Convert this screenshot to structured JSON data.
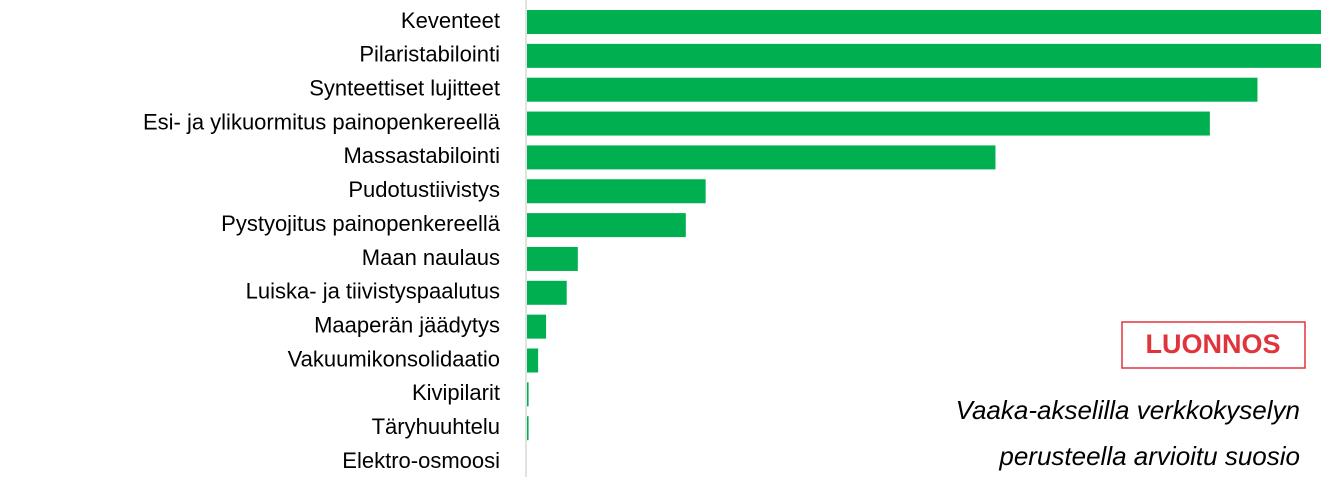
{
  "chart_data": {
    "type": "hbar",
    "categories": [
      "Keventeet",
      "Pilaristabilointi",
      "Synteettiset lujitteet",
      "Esi- ja ylikuormitus painopenkereellä",
      "Massastabilointi",
      "Pudotustiivistys",
      "Pystyojitus painopenkereellä",
      "Maan naulaus",
      "Luiska- ja tiivistyspaalutus",
      "Maaperän jäädytys",
      "Vakuumikonsolidaatio",
      "Kivipilarit",
      "Täryhuuhtelu",
      "Elektro-osmoosi"
    ],
    "values": [
      100,
      100,
      92,
      86,
      59,
      22.5,
      20,
      6.4,
      5,
      2.4,
      1.4,
      0.2,
      0.2,
      0
    ],
    "color": "#00b050",
    "xlim": [
      0,
      100
    ],
    "stamp": "LUONNOS",
    "note": [
      "Vaaka-akselilla verkkokyselyn",
      "perusteella arvioitu suosio"
    ]
  }
}
